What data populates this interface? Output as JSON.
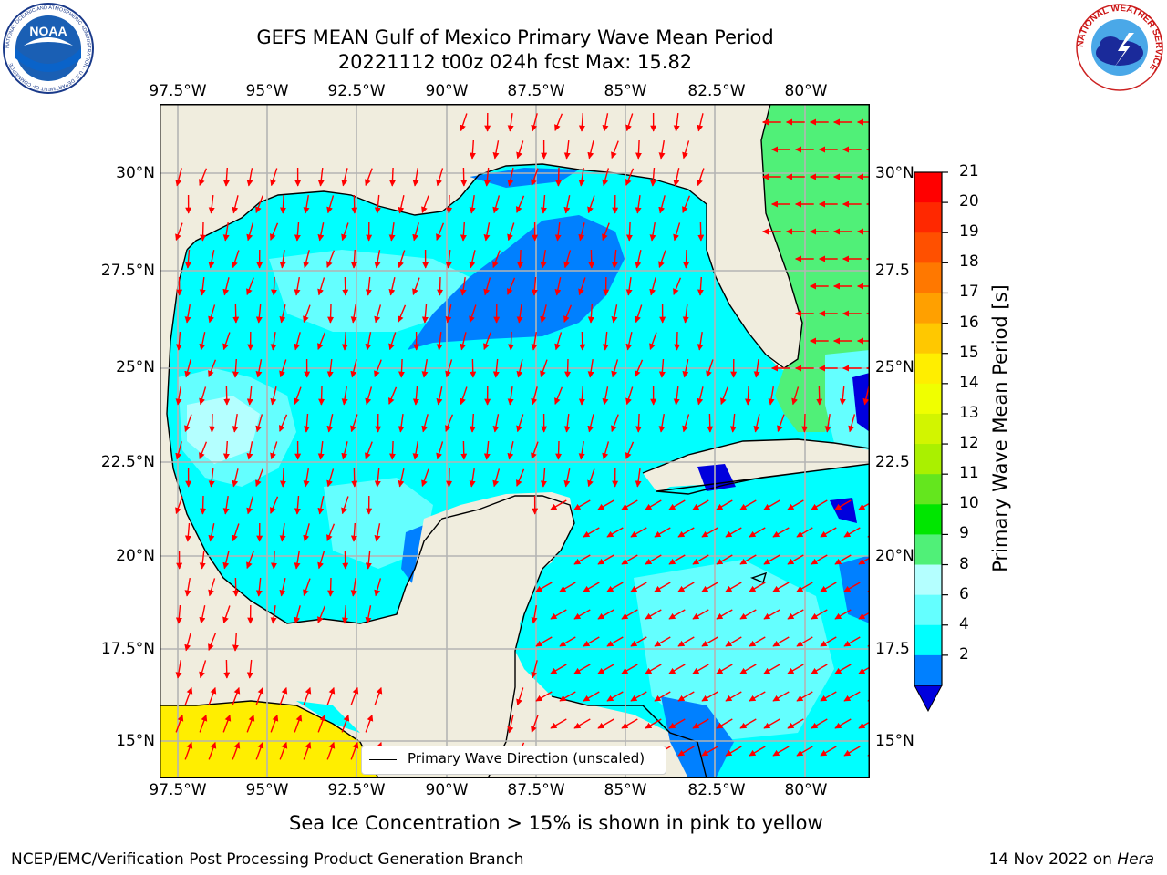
{
  "title": {
    "line1": "GEFS MEAN Gulf of Mexico Primary Wave Mean Period",
    "line2": "20221112 t00z 024h fcst   Max: 15.82"
  },
  "logos": {
    "left": "NOAA",
    "left_ring": "NATIONAL OCEANIC AND ATMOSPHERIC ADMINISTRATION · U.S. DEPARTMENT OF COMMERCE",
    "right_ring": "NATIONAL WEATHER SERVICE"
  },
  "axes": {
    "x_ticks": [
      "97.5°W",
      "95°W",
      "92.5°W",
      "90°W",
      "87.5°W",
      "85°W",
      "82.5°W",
      "80°W"
    ],
    "y_ticks_left": [
      "30°N",
      "27.5°N",
      "25°N",
      "22.5°N",
      "20°N",
      "17.5°N",
      "15°N"
    ],
    "y_ticks_right": [
      "30°N",
      "27.5",
      "25°N",
      "22.5",
      "20°N",
      "17.5",
      "15°N"
    ]
  },
  "legend": {
    "label": "Primary Wave Direction (unscaled)"
  },
  "colorbar": {
    "label": "Primary Wave Mean Period [s]",
    "ticks": [
      "21",
      "20",
      "19",
      "18",
      "17",
      "16",
      "15",
      "14",
      "13",
      "12",
      "11",
      "10",
      "9",
      "8",
      "6",
      "4",
      "2"
    ],
    "colors": [
      "#ff0000",
      "#ff2800",
      "#ff5000",
      "#ff7800",
      "#ffa000",
      "#ffc800",
      "#ffee00",
      "#f0ff00",
      "#d2f500",
      "#aaf000",
      "#64e61e",
      "#00e600",
      "#50f078",
      "#b4ffff",
      "#64ffff",
      "#00ffff",
      "#0080ff"
    ],
    "under_color": "#0000dd"
  },
  "colors": {
    "land": "#f0edde",
    "arrow": "#ff0000",
    "grid": "#b4b4b4"
  },
  "subtitle": "Sea Ice Concentration > 15% is shown in pink to yellow",
  "footer": {
    "left": "NCEP/EMC/Verification Post Processing Product Generation Branch",
    "right_prefix": "14 Nov 2022 on ",
    "right_machine": "Hera"
  }
}
